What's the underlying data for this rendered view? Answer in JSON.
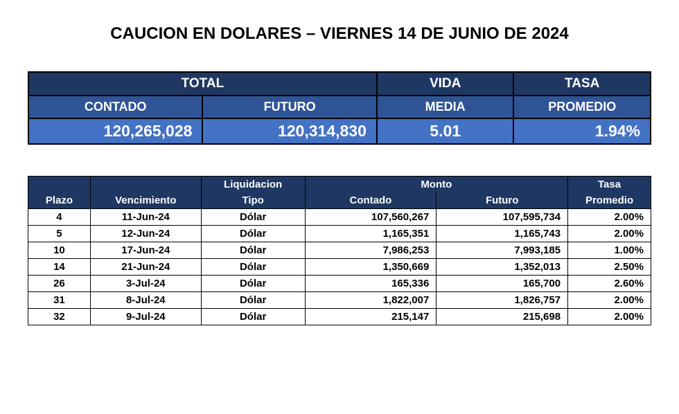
{
  "title": "CAUCION EN DOLARES – VIERNES 14 DE JUNIO DE 2024",
  "summary": {
    "headers": {
      "total": "TOTAL",
      "contado": "CONTADO",
      "futuro": "FUTURO",
      "vida": "VIDA",
      "media": "MEDIA",
      "tasa": "TASA",
      "promedio": "PROMEDIO"
    },
    "values": {
      "contado": "120,265,028",
      "futuro": "120,314,830",
      "vida_media": "5.01",
      "tasa_promedio": "1.94%"
    },
    "colors": {
      "header_dark_bg": "#1f3863",
      "header_mid_bg": "#2f5496",
      "value_row_bg": "#4472c4",
      "text_color": "#ffffff",
      "border_color": "#000000"
    }
  },
  "detail": {
    "headers": {
      "plazo": "Plazo",
      "vencimiento": "Vencimiento",
      "liquidacion": "Liquidacion",
      "tipo": "Tipo",
      "monto": "Monto",
      "contado": "Contado",
      "futuro": "Futuro",
      "tasa": "Tasa",
      "promedio": "Promedio"
    },
    "rows": [
      {
        "plazo": "4",
        "vencimiento": "11-Jun-24",
        "tipo": "Dólar",
        "contado": "107,560,267",
        "futuro": "107,595,734",
        "tasa": "2.00%"
      },
      {
        "plazo": "5",
        "vencimiento": "12-Jun-24",
        "tipo": "Dólar",
        "contado": "1,165,351",
        "futuro": "1,165,743",
        "tasa": "2.00%"
      },
      {
        "plazo": "10",
        "vencimiento": "17-Jun-24",
        "tipo": "Dólar",
        "contado": "7,986,253",
        "futuro": "7,993,185",
        "tasa": "1.00%"
      },
      {
        "plazo": "14",
        "vencimiento": "21-Jun-24",
        "tipo": "Dólar",
        "contado": "1,350,669",
        "futuro": "1,352,013",
        "tasa": "2.50%"
      },
      {
        "plazo": "26",
        "vencimiento": "3-Jul-24",
        "tipo": "Dólar",
        "contado": "165,336",
        "futuro": "165,700",
        "tasa": "2.60%"
      },
      {
        "plazo": "31",
        "vencimiento": "8-Jul-24",
        "tipo": "Dólar",
        "contado": "1,822,007",
        "futuro": "1,826,757",
        "tasa": "2.00%"
      },
      {
        "plazo": "32",
        "vencimiento": "9-Jul-24",
        "tipo": "Dólar",
        "contado": "215,147",
        "futuro": "215,698",
        "tasa": "2.00%"
      }
    ],
    "colors": {
      "header_bg": "#1f3863",
      "header_text": "#ffffff",
      "cell_bg": "#ffffff",
      "cell_text": "#000000",
      "border_color": "#000000"
    },
    "font_size_pt": 15
  }
}
